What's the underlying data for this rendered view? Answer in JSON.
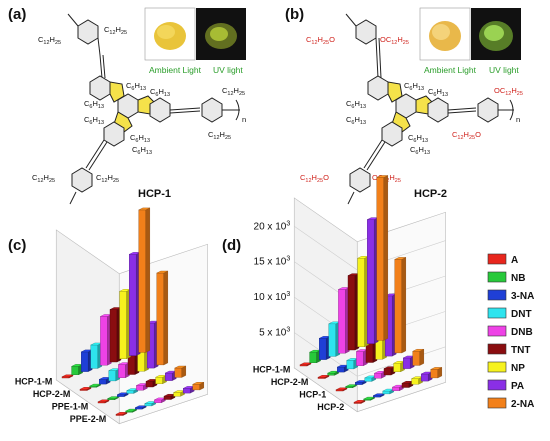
{
  "panels": {
    "a": {
      "label": "(a)",
      "compound": "HCP-1",
      "n": "n",
      "inset": {
        "left_caption": "Ambient Light",
        "right_caption": "UV light"
      }
    },
    "b": {
      "label": "(b)",
      "compound": "HCP-2",
      "n": "n",
      "inset": {
        "left_caption": "Ambient Light",
        "right_caption": "UV light"
      }
    },
    "c": {
      "label": "(c)"
    },
    "d": {
      "label": "(d)"
    }
  },
  "chem_labels": {
    "c12": "C12H25",
    "c6": "C6H13",
    "oc12_left": "C12H25O",
    "oc12_right": "OC12H25"
  },
  "colors": {
    "A": "#e8261d",
    "NB": "#27c93a",
    "3-NA": "#1f3fd6",
    "DNT": "#2ee4ee",
    "DNB": "#ee42e6",
    "TNT": "#8a0d10",
    "NP": "#f6f21e",
    "PA": "#8a2fe6",
    "2-NA": "#f2801a",
    "pentagon": "#f5e24a",
    "inset_ambient": "#e9c43a",
    "inset_uv": "#b9cf3a"
  },
  "chart_data": [
    {
      "type": "bar",
      "title": "",
      "panel": "(c)",
      "categories": [
        "HCP-1-M",
        "HCP-2-M",
        "PPE-1-M",
        "PPE-2-M"
      ],
      "yticks": [],
      "series": [
        {
          "name": "A",
          "values": [
            0.05,
            0.04,
            0.03,
            0.03
          ]
        },
        {
          "name": "NB",
          "values": [
            0.9,
            0.12,
            0.06,
            0.05
          ]
        },
        {
          "name": "3-NA",
          "values": [
            2.1,
            0.5,
            0.2,
            0.15
          ]
        },
        {
          "name": "DNT",
          "values": [
            2.5,
            1.1,
            0.3,
            0.25
          ]
        },
        {
          "name": "DNB",
          "values": [
            5.2,
            1.4,
            0.5,
            0.3
          ]
        },
        {
          "name": "TNT",
          "values": [
            5.6,
            2.0,
            0.6,
            0.35
          ]
        },
        {
          "name": "NP",
          "values": [
            7.2,
            4.4,
            0.7,
            0.4
          ]
        },
        {
          "name": "PA",
          "values": [
            10.8,
            4.8,
            0.8,
            0.5
          ]
        },
        {
          "name": "2-NA",
          "values": [
            15.2,
            9.8,
            1.0,
            0.6
          ]
        }
      ],
      "ylim": [
        0,
        16
      ]
    },
    {
      "type": "bar",
      "title": "",
      "panel": "(d)",
      "categories": [
        "HCP-1-M",
        "HCP-2-M",
        "HCP-1",
        "HCP-2"
      ],
      "yticks": [
        "5 x 10³",
        "10 x 10³",
        "15 x 10³",
        "20 x 10³"
      ],
      "series": [
        {
          "name": "A",
          "values": [
            100,
            80,
            60,
            50
          ]
        },
        {
          "name": "NB",
          "values": [
            1500,
            300,
            150,
            100
          ]
        },
        {
          "name": "3-NA",
          "values": [
            3000,
            700,
            300,
            200
          ]
        },
        {
          "name": "DNT",
          "values": [
            4600,
            1200,
            500,
            400
          ]
        },
        {
          "name": "DNB",
          "values": [
            9000,
            2000,
            700,
            500
          ]
        },
        {
          "name": "TNT",
          "values": [
            10500,
            2800,
            900,
            600
          ]
        },
        {
          "name": "NP",
          "values": [
            12500,
            5000,
            1200,
            800
          ]
        },
        {
          "name": "PA",
          "values": [
            17500,
            8500,
            1500,
            1000
          ]
        },
        {
          "name": "2-NA",
          "values": [
            23000,
            13200,
            2000,
            1200
          ]
        }
      ],
      "ylim": [
        0,
        24000
      ]
    }
  ],
  "legend": {
    "placement": "right",
    "items": [
      "A",
      "NB",
      "3-NA",
      "DNT",
      "DNB",
      "TNT",
      "NP",
      "PA",
      "2-NA"
    ]
  }
}
